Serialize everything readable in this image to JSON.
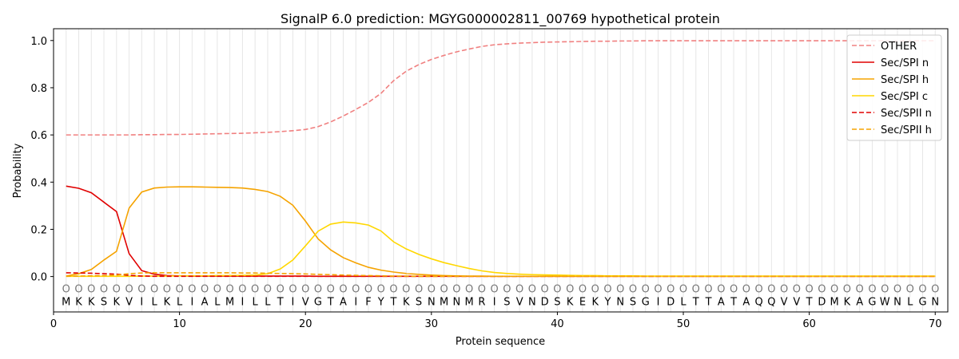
{
  "chart_data": {
    "type": "line",
    "title": "SignalP 6.0 prediction: MGYG000002811_00769 hypothetical protein",
    "xlabel": "Protein sequence",
    "ylabel": "Probability",
    "xlim": [
      0,
      71
    ],
    "ylim": [
      -0.15,
      1.05
    ],
    "xticks": [
      0,
      10,
      20,
      30,
      40,
      50,
      60,
      70
    ],
    "yticks": [
      0.0,
      0.2,
      0.4,
      0.6,
      0.8,
      1.0
    ],
    "ytick_labels": [
      "0.0",
      "0.2",
      "0.4",
      "0.6",
      "0.8",
      "1.0"
    ],
    "vertical_gridlines": true,
    "legend_position": "top-right",
    "sequence": [
      "M",
      "K",
      "K",
      "S",
      "K",
      "V",
      "I",
      "L",
      "K",
      "L",
      "I",
      "A",
      "L",
      "M",
      "I",
      "L",
      "L",
      "T",
      "I",
      "V",
      "G",
      "T",
      "A",
      "I",
      "F",
      "Y",
      "T",
      "K",
      "S",
      "N",
      "M",
      "N",
      "M",
      "R",
      "I",
      "S",
      "V",
      "N",
      "D",
      "S",
      "K",
      "E",
      "K",
      "Y",
      "N",
      "S",
      "G",
      "I",
      "D",
      "L",
      "T",
      "T",
      "A",
      "T",
      "A",
      "Q",
      "Q",
      "V",
      "V",
      "T",
      "D",
      "M",
      "K",
      "A",
      "G",
      "W",
      "N",
      "L",
      "G",
      "N"
    ],
    "sequence_marker": "O",
    "series": [
      {
        "name": "OTHER",
        "color": "#f08080",
        "dash": "dashed",
        "values": [
          0.6,
          0.6,
          0.6,
          0.6,
          0.6,
          0.6,
          0.601,
          0.601,
          0.602,
          0.602,
          0.603,
          0.604,
          0.605,
          0.606,
          0.607,
          0.609,
          0.611,
          0.614,
          0.618,
          0.623,
          0.635,
          0.655,
          0.68,
          0.708,
          0.738,
          0.776,
          0.83,
          0.87,
          0.898,
          0.92,
          0.937,
          0.952,
          0.964,
          0.975,
          0.982,
          0.986,
          0.989,
          0.991,
          0.993,
          0.994,
          0.995,
          0.996,
          0.997,
          0.997,
          0.998,
          0.998,
          0.999,
          0.999,
          0.999,
          0.999,
          0.999,
          0.999,
          0.999,
          0.999,
          0.999,
          0.999,
          0.999,
          0.999,
          0.999,
          0.999,
          0.999,
          0.999,
          0.999,
          0.999,
          0.999,
          0.999,
          0.999,
          0.999,
          0.999,
          0.999
        ]
      },
      {
        "name": "Sec/SPI n",
        "color": "#e00000",
        "dash": "solid",
        "values": [
          0.383,
          0.374,
          0.355,
          0.315,
          0.275,
          0.097,
          0.025,
          0.01,
          0.004,
          0.003,
          0.002,
          0.002,
          0.002,
          0.002,
          0.002,
          0.002,
          0.002,
          0.002,
          0.002,
          0.002,
          0.001,
          0.001,
          0.001,
          0.001,
          0.001,
          0.001,
          0.001,
          0.001,
          0.001,
          0.001,
          0.001,
          0.001,
          0.001,
          0.001,
          0.001,
          0.001,
          0.001,
          0.001,
          0.001,
          0.001,
          0.001,
          0.001,
          0.001,
          0.001,
          0.001,
          0.001,
          0.001,
          0.001,
          0.001,
          0.001,
          0.001,
          0.001,
          0.001,
          0.001,
          0.001,
          0.001,
          0.001,
          0.001,
          0.001,
          0.001,
          0.001,
          0.001,
          0.001,
          0.001,
          0.001,
          0.001,
          0.001,
          0.001,
          0.001,
          0.001
        ]
      },
      {
        "name": "Sec/SPI h",
        "color": "#f5a300",
        "dash": "solid",
        "values": [
          0.002,
          0.012,
          0.03,
          0.07,
          0.107,
          0.29,
          0.358,
          0.375,
          0.379,
          0.38,
          0.38,
          0.379,
          0.378,
          0.377,
          0.375,
          0.369,
          0.36,
          0.34,
          0.302,
          0.235,
          0.16,
          0.113,
          0.08,
          0.058,
          0.039,
          0.027,
          0.019,
          0.013,
          0.009,
          0.006,
          0.004,
          0.003,
          0.002,
          0.002,
          0.001,
          0.001,
          0.001,
          0.001,
          0.001,
          0.001,
          0.001,
          0.001,
          0.001,
          0.001,
          0.001,
          0.001,
          0.001,
          0.001,
          0.001,
          0.001,
          0.001,
          0.001,
          0.001,
          0.001,
          0.001,
          0.001,
          0.001,
          0.001,
          0.001,
          0.001,
          0.001,
          0.001,
          0.001,
          0.001,
          0.001,
          0.001,
          0.001,
          0.001,
          0.001,
          0.001
        ]
      },
      {
        "name": "Sec/SPI c",
        "color": "#ffd700",
        "dash": "solid",
        "values": [
          0.001,
          0.001,
          0.001,
          0.001,
          0.001,
          0.001,
          0.002,
          0.002,
          0.002,
          0.003,
          0.003,
          0.003,
          0.004,
          0.004,
          0.005,
          0.006,
          0.012,
          0.032,
          0.07,
          0.13,
          0.192,
          0.222,
          0.231,
          0.227,
          0.218,
          0.193,
          0.147,
          0.117,
          0.094,
          0.075,
          0.059,
          0.046,
          0.034,
          0.024,
          0.017,
          0.013,
          0.01,
          0.008,
          0.007,
          0.006,
          0.005,
          0.004,
          0.004,
          0.003,
          0.003,
          0.003,
          0.002,
          0.002,
          0.002,
          0.002,
          0.002,
          0.002,
          0.002,
          0.002,
          0.002,
          0.002,
          0.002,
          0.002,
          0.002,
          0.002,
          0.002,
          0.002,
          0.002,
          0.002,
          0.002,
          0.002,
          0.002,
          0.002,
          0.002,
          0.002
        ]
      },
      {
        "name": "Sec/SPII n",
        "color": "#e00000",
        "dash": "dashed",
        "values": [
          0.016,
          0.015,
          0.014,
          0.012,
          0.01,
          0.005,
          0.002,
          0.001,
          0.001,
          0.001,
          0.001,
          0.001,
          0.001,
          0.001,
          0.001,
          0.001,
          0.001,
          0.001,
          0.001,
          0.001,
          0.001,
          0.001,
          0.001,
          0.001,
          0.001,
          0.001,
          0.001,
          0.001,
          0.001,
          0.001,
          0.001,
          0.001,
          0.001,
          0.001,
          0.001,
          0.001,
          0.001,
          0.001,
          0.001,
          0.001,
          0.001,
          0.001,
          0.001,
          0.001,
          0.001,
          0.001,
          0.001,
          0.001,
          0.001,
          0.001,
          0.001,
          0.001,
          0.001,
          0.001,
          0.001,
          0.001,
          0.001,
          0.001,
          0.001,
          0.001,
          0.001,
          0.001,
          0.001,
          0.001,
          0.001,
          0.001,
          0.001,
          0.001,
          0.001,
          0.001
        ]
      },
      {
        "name": "Sec/SPII h",
        "color": "#f5a300",
        "dash": "dashed",
        "values": [
          0.001,
          0.002,
          0.003,
          0.004,
          0.006,
          0.012,
          0.015,
          0.016,
          0.016,
          0.016,
          0.016,
          0.016,
          0.016,
          0.016,
          0.015,
          0.015,
          0.014,
          0.013,
          0.012,
          0.011,
          0.009,
          0.008,
          0.006,
          0.005,
          0.004,
          0.003,
          0.002,
          0.002,
          0.001,
          0.001,
          0.001,
          0.001,
          0.001,
          0.001,
          0.001,
          0.001,
          0.001,
          0.001,
          0.001,
          0.001,
          0.001,
          0.001,
          0.001,
          0.001,
          0.001,
          0.001,
          0.001,
          0.001,
          0.001,
          0.001,
          0.001,
          0.001,
          0.001,
          0.001,
          0.001,
          0.001,
          0.001,
          0.001,
          0.001,
          0.001,
          0.001,
          0.001,
          0.001,
          0.001,
          0.001,
          0.001,
          0.001,
          0.001,
          0.001,
          0.001
        ]
      }
    ]
  }
}
